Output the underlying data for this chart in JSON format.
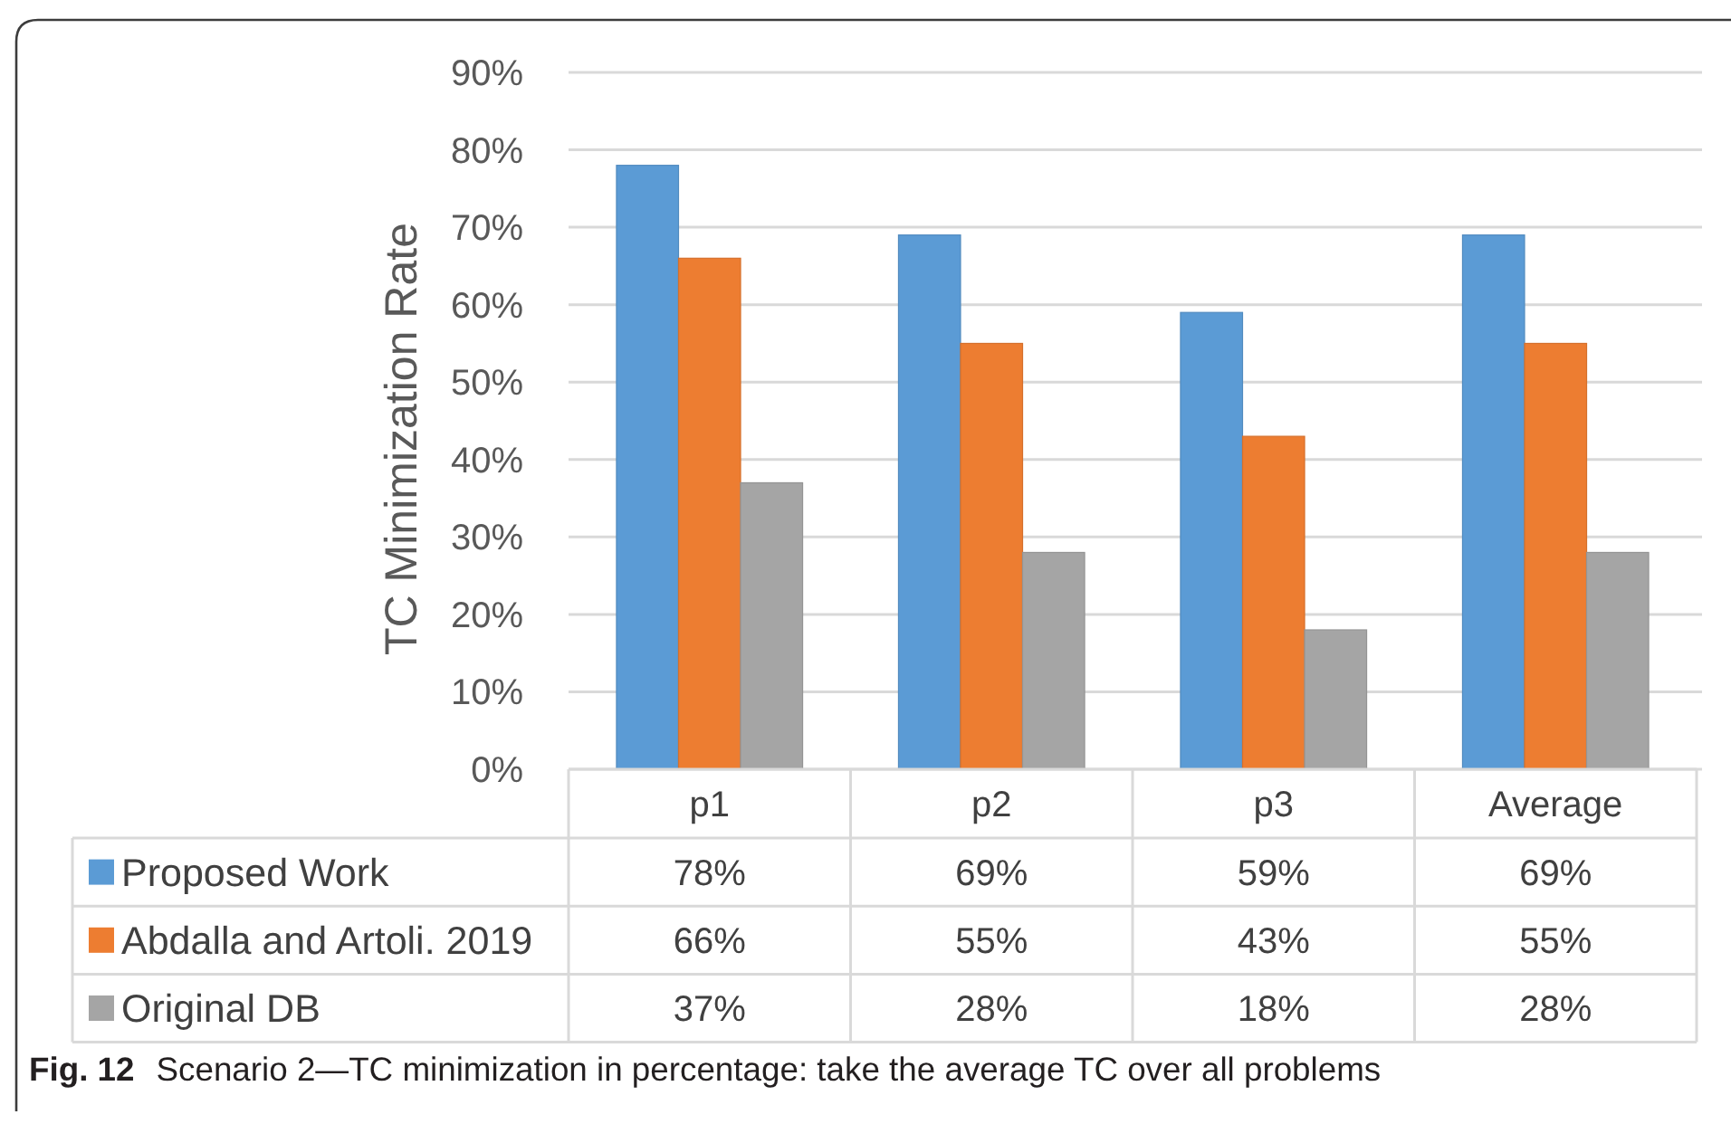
{
  "chart_data": {
    "type": "bar",
    "categories": [
      "p1",
      "p2",
      "p3",
      "Average"
    ],
    "series": [
      {
        "name": "Proposed Work",
        "color": "#5b9bd5",
        "values": [
          78,
          69,
          59,
          69
        ],
        "value_labels": [
          "78%",
          "69%",
          "59%",
          "69%"
        ]
      },
      {
        "name": "Abdalla and Artoli. 2019",
        "color": "#ed7d31",
        "values": [
          66,
          55,
          43,
          55
        ],
        "value_labels": [
          "66%",
          "55%",
          "43%",
          "55%"
        ]
      },
      {
        "name": "Original DB",
        "color": "#a5a5a5",
        "values": [
          37,
          28,
          18,
          28
        ],
        "value_labels": [
          "37%",
          "28%",
          "18%",
          "28%"
        ]
      }
    ],
    "ylabel": "TC Minimization Rate",
    "ylim": [
      0,
      90
    ],
    "yticks": [
      {
        "value": 0,
        "label": "0%"
      },
      {
        "value": 10,
        "label": "10%"
      },
      {
        "value": 20,
        "label": "20%"
      },
      {
        "value": 30,
        "label": "30%"
      },
      {
        "value": 40,
        "label": "40%"
      },
      {
        "value": 50,
        "label": "50%"
      },
      {
        "value": 60,
        "label": "60%"
      },
      {
        "value": 70,
        "label": "70%"
      },
      {
        "value": 80,
        "label": "80%"
      },
      {
        "value": 90,
        "label": "90%"
      }
    ],
    "grid": "y",
    "legend": "bottom",
    "annotations": [
      "Fig. 12",
      "Scenario 2—TC minimization in percentage: take the average TC over all problems"
    ]
  }
}
